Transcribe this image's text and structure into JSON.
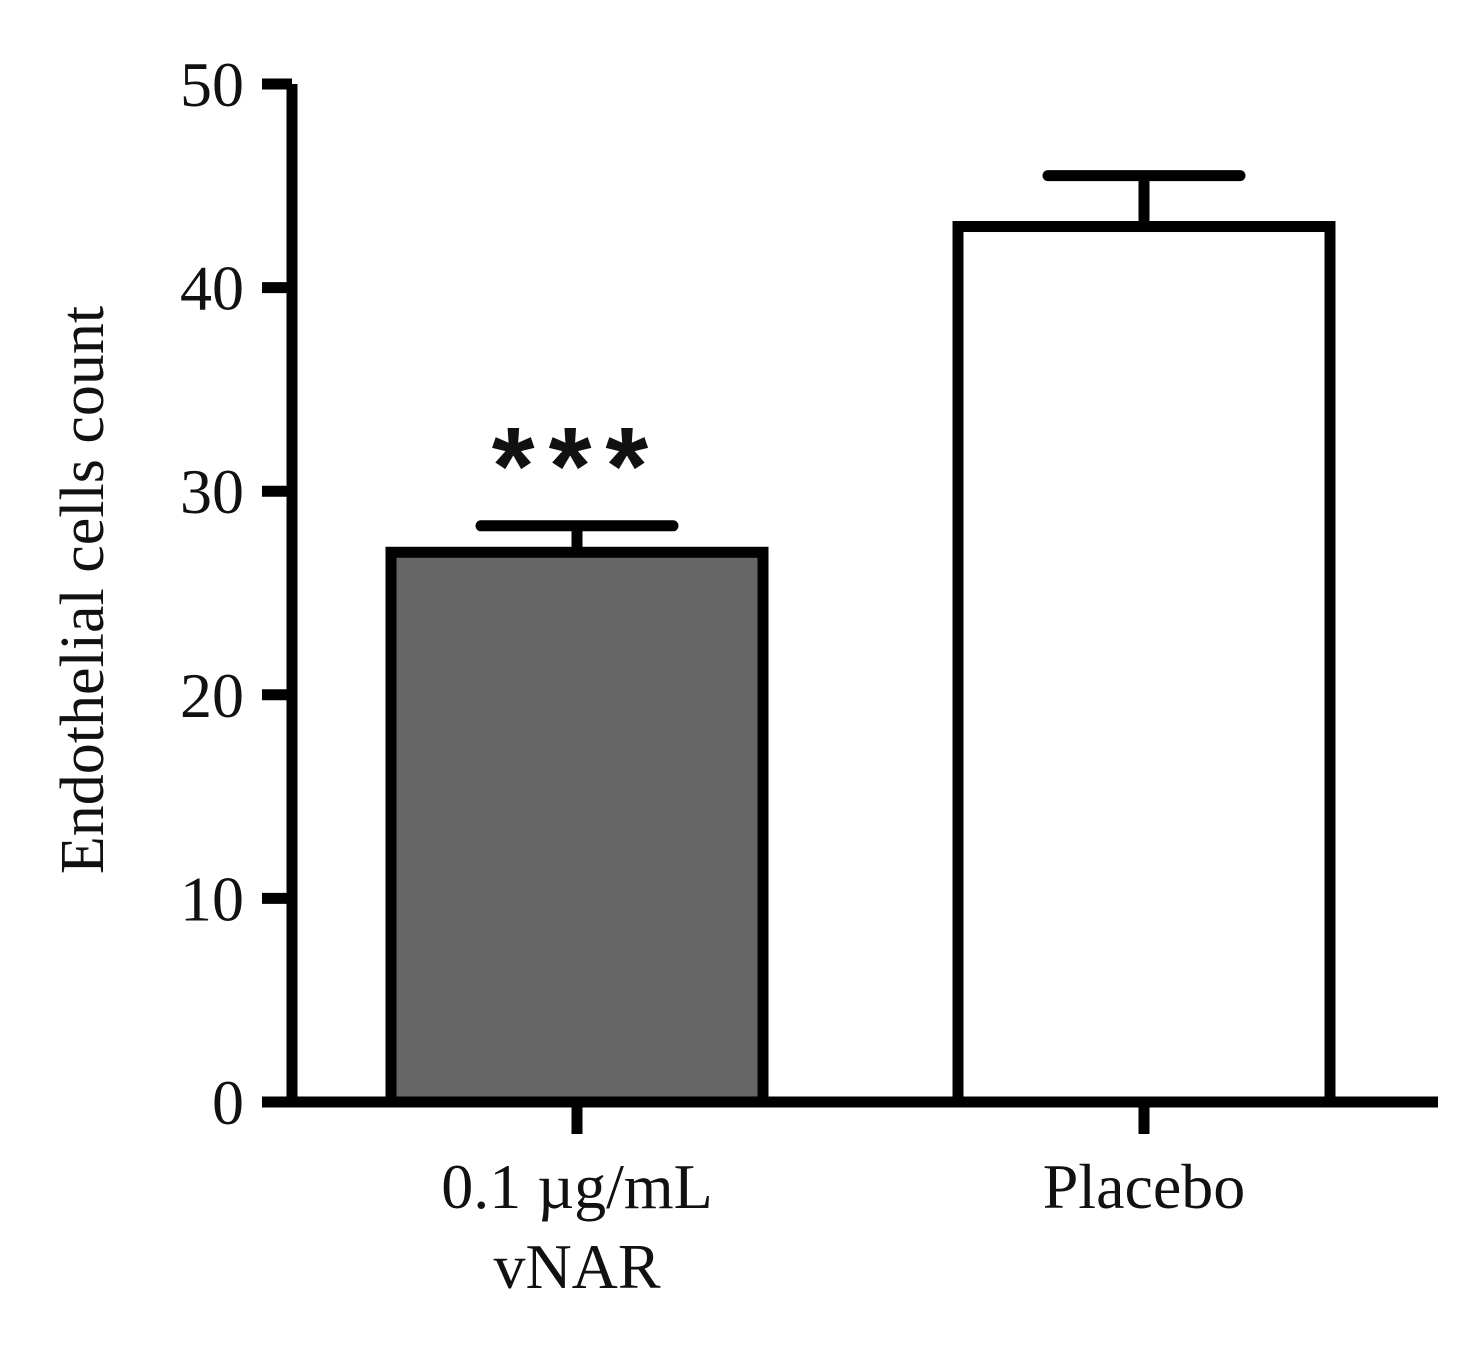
{
  "chart_data": {
    "type": "bar",
    "title": "",
    "xlabel": "",
    "ylabel": "Endothelial cells count",
    "ylim": [
      0,
      50
    ],
    "yticks": [
      0,
      10,
      20,
      30,
      40,
      50
    ],
    "categories": [
      [
        "0.1 µg/mL",
        "vNAR"
      ],
      [
        "Placebo"
      ]
    ],
    "values": [
      27,
      43
    ],
    "error_upper": [
      1.3,
      2.5
    ],
    "significance": [
      "***",
      ""
    ],
    "bar_colors": [
      "#666666",
      "#ffffff"
    ],
    "outline_color": "#000000",
    "grid": false,
    "legend": "none"
  }
}
